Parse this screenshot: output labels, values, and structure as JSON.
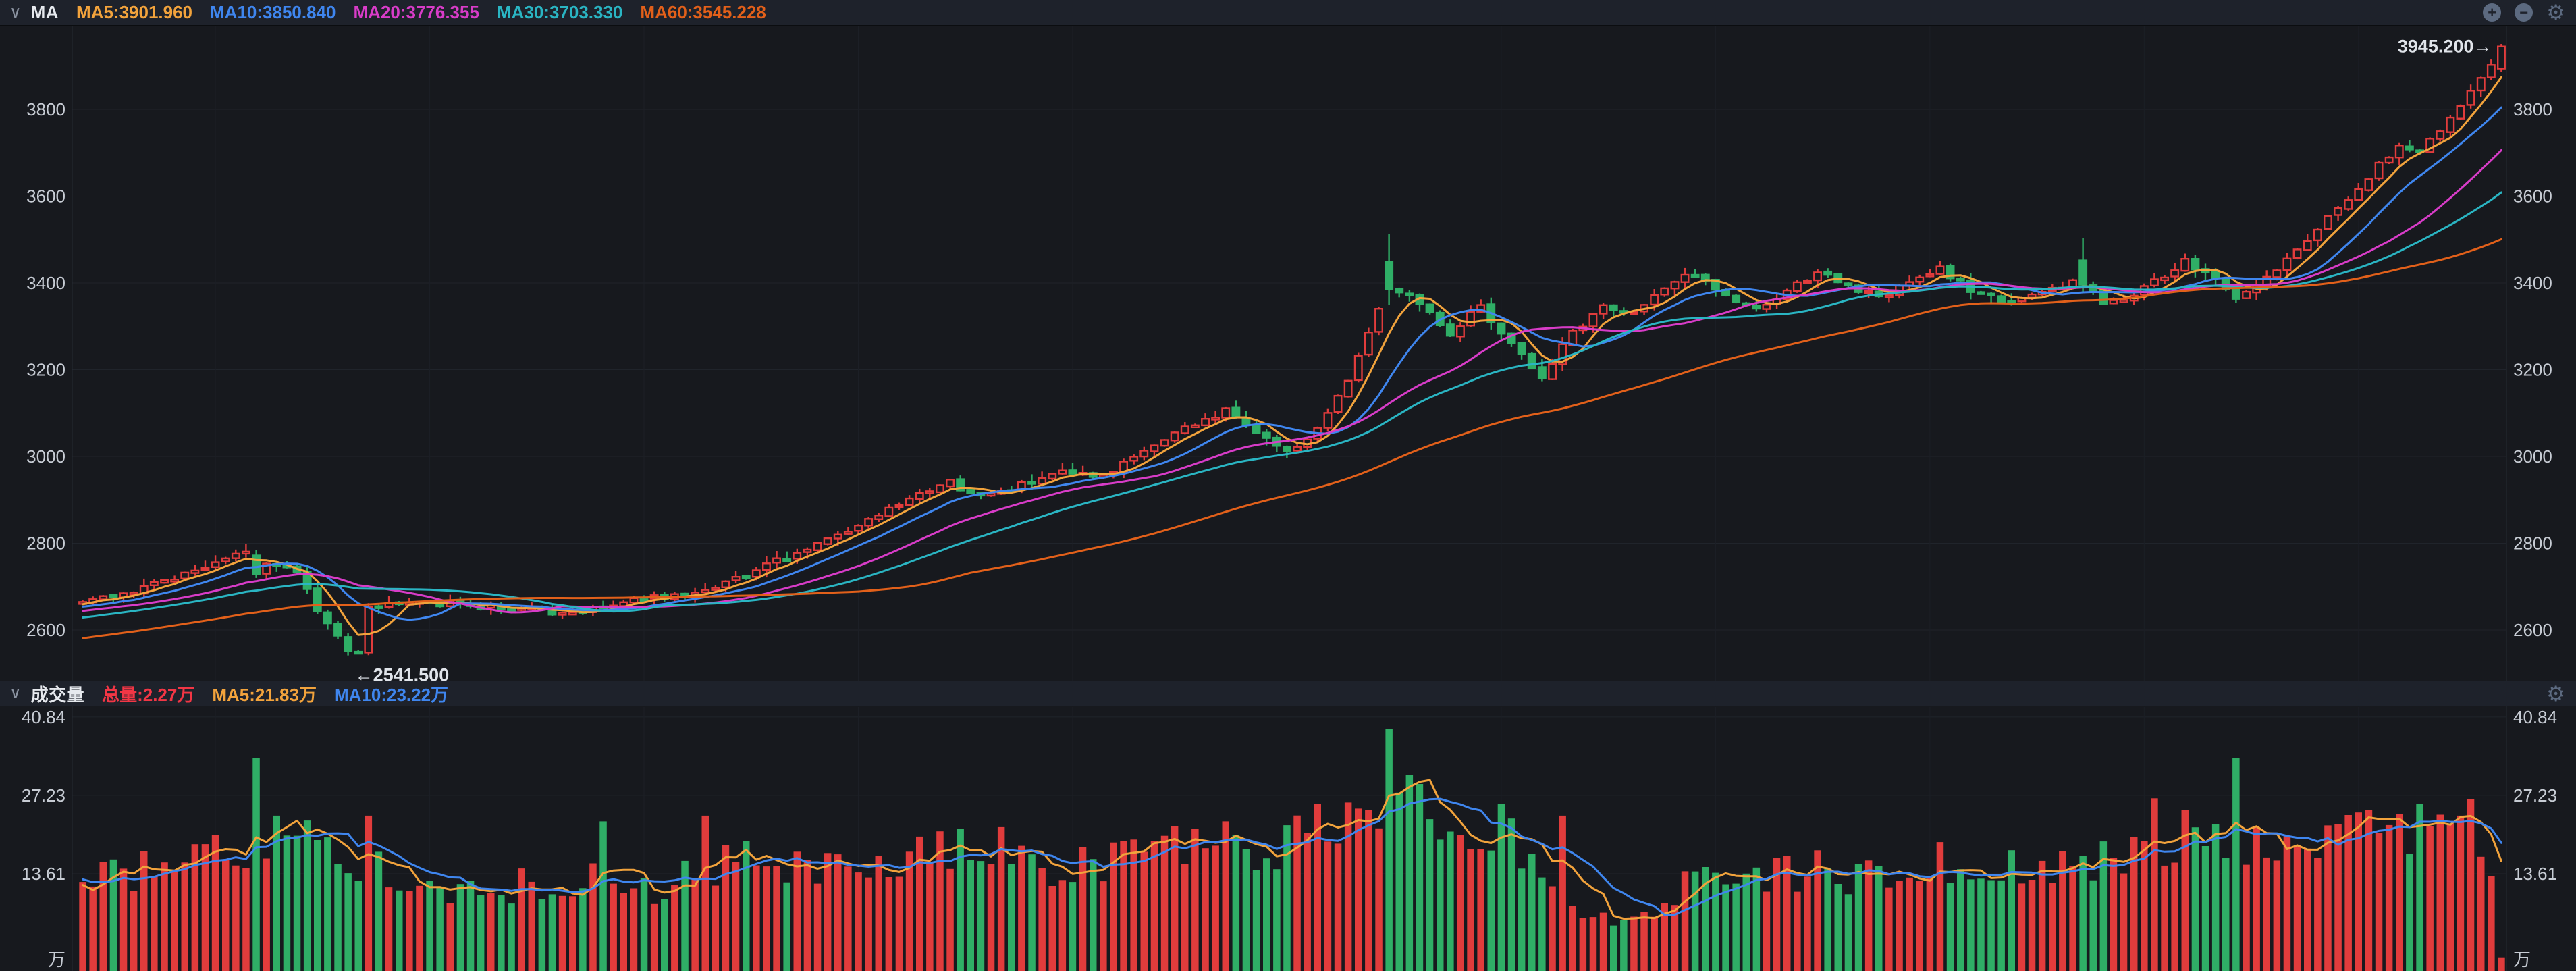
{
  "header": {
    "collapse_icon": "∨",
    "indicator_label": "MA",
    "legend": [
      {
        "text": "MA5:3901.960",
        "color": "#f2a33c"
      },
      {
        "text": "MA10:3850.840",
        "color": "#3f86ef"
      },
      {
        "text": "MA20:3776.355",
        "color": "#d83cc8"
      },
      {
        "text": "MA30:3703.330",
        "color": "#2ab5c3"
      },
      {
        "text": "MA60:3545.228",
        "color": "#e2601a"
      }
    ],
    "toolbar": {
      "zoom_in": "+",
      "zoom_out": "−",
      "settings": "⚙"
    }
  },
  "volume_header": {
    "collapse_icon": "∨",
    "title": "成交量",
    "legend": [
      {
        "text": "总量:2.27万",
        "color": "#f23645"
      },
      {
        "text": "MA5:21.83万",
        "color": "#f2a33c"
      },
      {
        "text": "MA10:23.22万",
        "color": "#3f86ef"
      }
    ],
    "settings_icon": "⚙"
  },
  "chart_data": {
    "type": "candlestick+volume",
    "price_pane": {
      "title": "MA indicator on daily candles",
      "yticks": [
        3800,
        3600,
        3400,
        3200,
        3000,
        2800,
        2600
      ],
      "ylim": [
        2480,
        3990
      ],
      "grid": true,
      "up_color": "#e13c3c",
      "down_color": "#2fae66",
      "axis_text_color": "#c7ccd4",
      "annotation_text_color": "#e0e4ea",
      "last_price": 3945.2,
      "last_price_label": "3945.200→",
      "min_low": 2541.5,
      "min_annotation": "←2541.500",
      "min_bar": 26,
      "bars": 238,
      "preroll": 60,
      "seed": 42,
      "ma": [
        {
          "period": 5,
          "color": "#f2a33c"
        },
        {
          "period": 10,
          "color": "#3f86ef"
        },
        {
          "period": 20,
          "color": "#d83cc8"
        },
        {
          "period": 30,
          "color": "#2ab5c3"
        },
        {
          "period": 60,
          "color": "#e2601a"
        }
      ],
      "close_waypoints": [
        [
          -60,
          2478
        ],
        [
          -45,
          2532
        ],
        [
          -30,
          2582
        ],
        [
          -15,
          2632
        ],
        [
          -5,
          2652
        ],
        [
          0,
          2666
        ],
        [
          4,
          2686
        ],
        [
          8,
          2715
        ],
        [
          12,
          2748
        ],
        [
          16,
          2780
        ],
        [
          18,
          2755
        ],
        [
          21,
          2736
        ],
        [
          23,
          2648
        ],
        [
          25,
          2584
        ],
        [
          27,
          2552
        ],
        [
          28,
          2648
        ],
        [
          31,
          2668
        ],
        [
          35,
          2662
        ],
        [
          40,
          2654
        ],
        [
          44,
          2646
        ],
        [
          47,
          2634
        ],
        [
          51,
          2658
        ],
        [
          56,
          2674
        ],
        [
          61,
          2696
        ],
        [
          66,
          2738
        ],
        [
          71,
          2788
        ],
        [
          76,
          2838
        ],
        [
          81,
          2898
        ],
        [
          85,
          2940
        ],
        [
          88,
          2906
        ],
        [
          92,
          2934
        ],
        [
          96,
          2960
        ],
        [
          100,
          2950
        ],
        [
          104,
          3014
        ],
        [
          108,
          3066
        ],
        [
          112,
          3104
        ],
        [
          115,
          3060
        ],
        [
          118,
          3006
        ],
        [
          121,
          3060
        ],
        [
          124,
          3182
        ],
        [
          126,
          3288
        ],
        [
          128,
          3398
        ],
        [
          131,
          3356
        ],
        [
          134,
          3286
        ],
        [
          137,
          3346
        ],
        [
          140,
          3258
        ],
        [
          143,
          3184
        ],
        [
          146,
          3286
        ],
        [
          149,
          3346
        ],
        [
          152,
          3332
        ],
        [
          155,
          3388
        ],
        [
          158,
          3424
        ],
        [
          161,
          3368
        ],
        [
          164,
          3336
        ],
        [
          167,
          3380
        ],
        [
          170,
          3422
        ],
        [
          173,
          3394
        ],
        [
          176,
          3364
        ],
        [
          179,
          3400
        ],
        [
          182,
          3432
        ],
        [
          185,
          3386
        ],
        [
          188,
          3354
        ],
        [
          191,
          3374
        ],
        [
          194,
          3392
        ],
        [
          196,
          3420
        ],
        [
          198,
          3346
        ],
        [
          200,
          3364
        ],
        [
          203,
          3402
        ],
        [
          206,
          3448
        ],
        [
          209,
          3406
        ],
        [
          211,
          3368
        ],
        [
          213,
          3400
        ],
        [
          216,
          3450
        ],
        [
          219,
          3522
        ],
        [
          222,
          3598
        ],
        [
          225,
          3670
        ],
        [
          227,
          3714
        ],
        [
          229,
          3700
        ],
        [
          231,
          3750
        ],
        [
          233,
          3814
        ],
        [
          235,
          3874
        ],
        [
          237,
          3940
        ]
      ],
      "candle_overrides": [
        {
          "i": 17,
          "open": 2772,
          "high": 2784,
          "low": 2720,
          "close": 2728
        },
        {
          "i": 26,
          "open": 2584,
          "high": 2592,
          "low": 2541.5,
          "close": 2552
        },
        {
          "i": 28,
          "open": 2548,
          "high": 2662,
          "low": 2542,
          "close": 2654
        },
        {
          "i": 128,
          "open": 3448,
          "high": 3512,
          "low": 3350,
          "close": 3385
        },
        {
          "i": 196,
          "open": 3452,
          "high": 3503,
          "low": 3378,
          "close": 3396
        },
        {
          "i": 237,
          "open": 3894,
          "high": 3951,
          "low": 3886,
          "close": 3945.2
        }
      ]
    },
    "volume_pane": {
      "yticks": [
        40.84,
        27.23,
        13.61
      ],
      "unit": "万",
      "grid": true,
      "last_volume": 2.27,
      "vol_ma": [
        {
          "period": 5,
          "color": "#f2a33c"
        },
        {
          "period": 10,
          "color": "#3f86ef"
        }
      ],
      "volume_waypoints": [
        [
          -60,
          15
        ],
        [
          -30,
          16
        ],
        [
          0,
          16
        ],
        [
          8,
          18
        ],
        [
          14,
          21
        ],
        [
          20,
          23
        ],
        [
          26,
          20
        ],
        [
          32,
          17
        ],
        [
          38,
          13
        ],
        [
          44,
          15
        ],
        [
          50,
          17
        ],
        [
          56,
          14
        ],
        [
          62,
          18
        ],
        [
          68,
          19
        ],
        [
          74,
          17
        ],
        [
          80,
          19
        ],
        [
          86,
          21
        ],
        [
          92,
          18
        ],
        [
          98,
          19
        ],
        [
          104,
          21
        ],
        [
          110,
          22
        ],
        [
          116,
          20
        ],
        [
          122,
          25
        ],
        [
          128,
          30
        ],
        [
          133,
          25
        ],
        [
          138,
          23
        ],
        [
          143,
          20
        ],
        [
          147,
          9
        ],
        [
          151,
          8
        ],
        [
          155,
          13
        ],
        [
          160,
          17
        ],
        [
          165,
          16
        ],
        [
          170,
          18
        ],
        [
          175,
          16
        ],
        [
          180,
          18
        ],
        [
          185,
          19
        ],
        [
          190,
          17
        ],
        [
          195,
          18
        ],
        [
          200,
          20
        ],
        [
          205,
          23
        ],
        [
          210,
          23
        ],
        [
          215,
          21
        ],
        [
          220,
          24
        ],
        [
          225,
          26
        ],
        [
          230,
          24
        ],
        [
          234,
          25
        ],
        [
          236,
          21
        ],
        [
          237,
          2.27
        ]
      ],
      "volume_spikes": [
        [
          17,
          37
        ],
        [
          19,
          27
        ],
        [
          28,
          27
        ],
        [
          51,
          26
        ],
        [
          61,
          27
        ],
        [
          90,
          25
        ],
        [
          112,
          26
        ],
        [
          126,
          28
        ],
        [
          128,
          42
        ],
        [
          129,
          31
        ],
        [
          139,
          29
        ],
        [
          145,
          27
        ],
        [
          203,
          30
        ],
        [
          211,
          37
        ],
        [
          224,
          28
        ],
        [
          229,
          29
        ],
        [
          233,
          27
        ],
        [
          237,
          2.27
        ]
      ]
    }
  }
}
